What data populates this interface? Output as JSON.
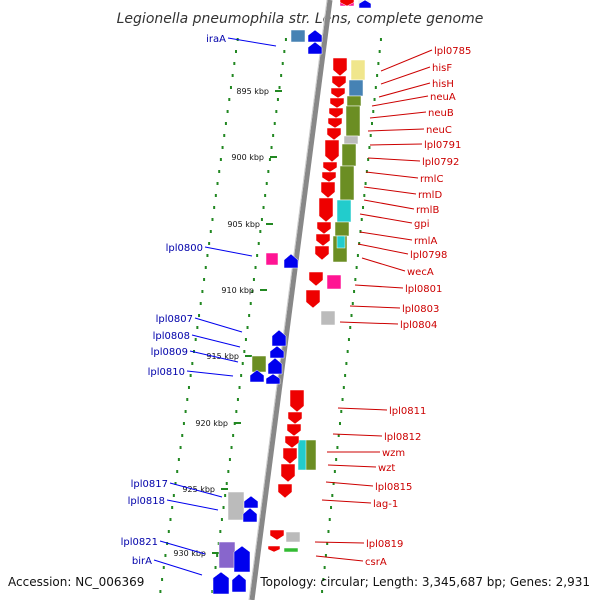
{
  "title": "Legionella pneumophila str. Lens, complete genome",
  "footer": {
    "accession": "Accession: NC_006369",
    "topology": "Topology: circular; Length: 3,345,687 bp; Genes: 2,931"
  },
  "kbp_labels": [
    "895 kbp",
    "900 kbp",
    "905 kbp",
    "910 kbp",
    "915 kbp",
    "920 kbp",
    "925 kbp",
    "930 kbp"
  ],
  "right_labels": [
    "lpl0785",
    "hisF",
    "hisH",
    "neuA",
    "neuB",
    "neuC",
    "lpl0791",
    "lpl0792",
    "rmlC",
    "rmlD",
    "rmlB",
    "gpi",
    "rmlA",
    "lpl0798",
    "wecA",
    "lpl0801",
    "lpl0803",
    "lpl0804",
    "lpl0811",
    "lpl0812",
    "wzm",
    "wzt",
    "lpl0815",
    "lag-1",
    "lpl0819",
    "csrA"
  ],
  "left_labels": [
    "iraA",
    "lpl0800",
    "lpl0807",
    "lpl0808",
    "lpl0809",
    "lpl0810",
    "lpl0817",
    "lpl0818",
    "lpl0821",
    "birA"
  ],
  "colors": {
    "forward_gene": "#ee0000",
    "reverse_gene": "#0000ee",
    "right_label": "#cc0000",
    "left_label": "#0000aa",
    "backbone": "#888888",
    "gc_tick": "#228822",
    "cog_olive": "#6b8e23",
    "cog_blue": "#4682b4",
    "cog_cyan": "#22cccc",
    "cog_yellow": "#f0e68c",
    "cog_pink": "#ff1493",
    "cog_gray": "#bbbbbb",
    "cog_purple": "#8866cc"
  }
}
